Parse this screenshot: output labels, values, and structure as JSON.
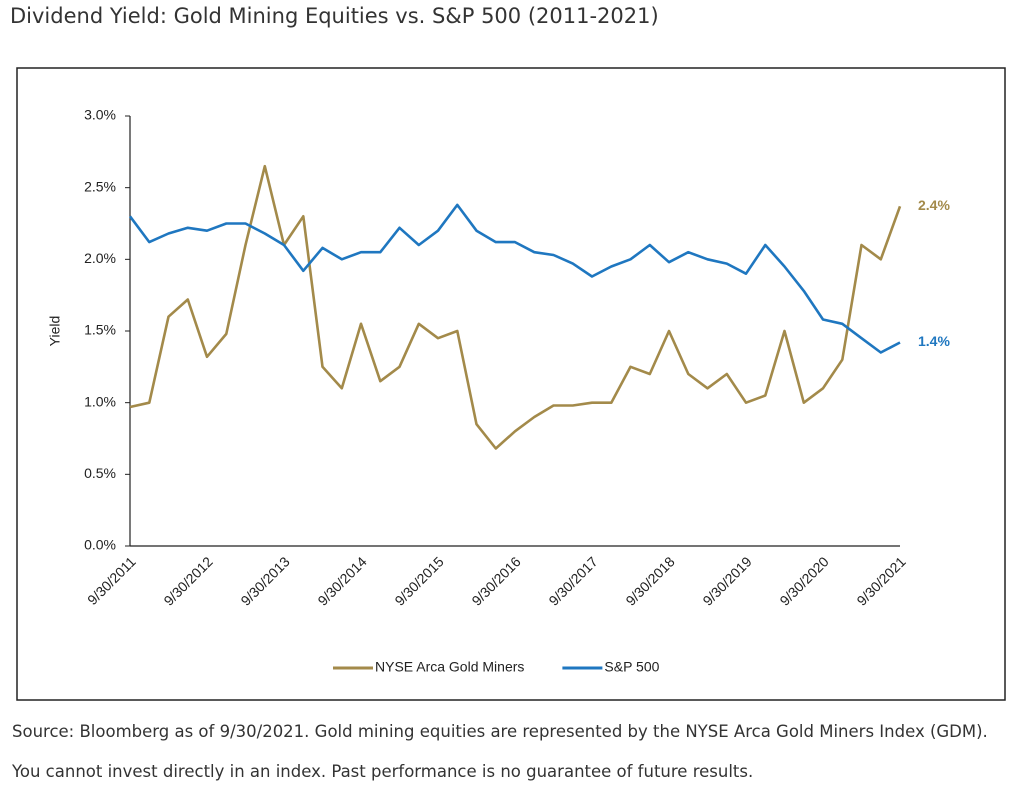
{
  "chart_data": {
    "type": "line",
    "title": "Dividend Yield: Gold Mining Equities vs. S&P 500 (2011-2021)",
    "source": "Source: Bloomberg as of 9/30/2021. Gold mining equities are represented by the NYSE Arca Gold Miners Index (GDM). You cannot invest directly in an index. Past performance is no guarantee of future results.",
    "y_label": "Yield",
    "categories": [
      "9/30/2011",
      null,
      null,
      null,
      "9/30/2012",
      null,
      null,
      null,
      "9/30/2013",
      null,
      null,
      null,
      "9/30/2014",
      null,
      null,
      null,
      "9/30/2015",
      null,
      null,
      null,
      "9/30/2016",
      null,
      null,
      null,
      "9/30/2017",
      null,
      null,
      null,
      "9/30/2018",
      null,
      null,
      null,
      "9/30/2019",
      null,
      null,
      null,
      "9/30/2020",
      null,
      null,
      null,
      "9/30/2021"
    ],
    "ylim": [
      0,
      3
    ],
    "yticks": [
      {
        "value": 0,
        "label": "0.0%"
      },
      {
        "value": 0.5,
        "label": "0.5%"
      },
      {
        "value": 1,
        "label": "1.0%"
      },
      {
        "value": 1.5,
        "label": "1.5%"
      },
      {
        "value": 2,
        "label": "2.0%"
      },
      {
        "value": 2.5,
        "label": "2.5%"
      },
      {
        "value": 3,
        "label": "3.0%"
      }
    ],
    "series": [
      {
        "name": "NYSE Arca Gold Miners",
        "color": "#a38a4a",
        "values": [
          0.97,
          1.0,
          1.6,
          1.72,
          1.32,
          1.48,
          2.1,
          2.65,
          2.1,
          2.3,
          1.25,
          1.1,
          1.55,
          1.15,
          1.25,
          1.55,
          1.45,
          1.5,
          0.85,
          0.68,
          0.8,
          0.9,
          0.98,
          0.98,
          1.0,
          1.0,
          1.25,
          1.2,
          1.5,
          1.2,
          1.1,
          1.2,
          1.0,
          1.05,
          1.5,
          1.0,
          1.1,
          1.3,
          2.1,
          2.0,
          2.37
        ],
        "value_labels": [
          null,
          null,
          null,
          null,
          null,
          null,
          null,
          null,
          null,
          null,
          null,
          null,
          null,
          null,
          null,
          null,
          null,
          null,
          null,
          null,
          null,
          null,
          null,
          null,
          null,
          null,
          null,
          null,
          null,
          null,
          null,
          null,
          null,
          null,
          null,
          null,
          null,
          null,
          null,
          null,
          "2.4%"
        ]
      },
      {
        "name": "S&P 500",
        "color": "#1f77c0",
        "values": [
          2.3,
          2.12,
          2.18,
          2.22,
          2.2,
          2.25,
          2.25,
          2.18,
          2.1,
          1.92,
          2.08,
          2.0,
          2.05,
          2.05,
          2.22,
          2.1,
          2.2,
          2.38,
          2.2,
          2.12,
          2.12,
          2.05,
          2.03,
          1.97,
          1.88,
          1.95,
          2.0,
          2.1,
          1.98,
          2.05,
          2.0,
          1.97,
          1.9,
          2.1,
          1.95,
          1.78,
          1.58,
          1.55,
          1.45,
          1.35,
          1.42
        ],
        "value_labels": [
          null,
          null,
          null,
          null,
          null,
          null,
          null,
          null,
          null,
          null,
          null,
          null,
          null,
          null,
          null,
          null,
          null,
          null,
          null,
          null,
          null,
          null,
          null,
          null,
          null,
          null,
          null,
          null,
          null,
          null,
          null,
          null,
          null,
          null,
          null,
          null,
          null,
          null,
          null,
          null,
          "1.4%"
        ]
      }
    ]
  }
}
